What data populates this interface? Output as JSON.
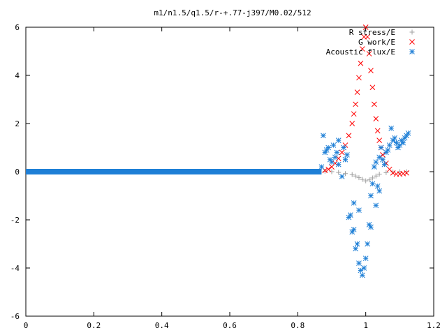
{
  "chart_data": {
    "type": "scatter",
    "title": "m1/n1.5/q1.5/r-+.77-j397/M0.02/512",
    "xlim": [
      0,
      1.2
    ],
    "ylim": [
      -6,
      6
    ],
    "xticks": [
      "0",
      "0.2",
      "0.4",
      "0.6",
      "0.8",
      "1",
      "1.2"
    ],
    "yticks": [
      "-6",
      "-4",
      "-2",
      "0",
      "2",
      "4",
      "6"
    ],
    "legend_position": "top-right",
    "grid": false,
    "series": [
      {
        "name": "R stress/E",
        "marker": "plus",
        "color": "#a0a0a0",
        "x": [
          0.88,
          0.9,
          0.92,
          0.94,
          0.96,
          0.97,
          0.98,
          0.99,
          1.0,
          1.01,
          1.02,
          1.03,
          1.04,
          1.06,
          1.08,
          1.1,
          1.12
        ],
        "y": [
          0.02,
          0.0,
          -0.03,
          -0.08,
          -0.12,
          -0.18,
          -0.25,
          -0.32,
          -0.38,
          -0.34,
          -0.26,
          -0.18,
          -0.1,
          -0.04,
          -0.01,
          0.0,
          0.0
        ]
      },
      {
        "name": "G work/E",
        "marker": "cross",
        "color": "#ff0000",
        "x": [
          0.88,
          0.89,
          0.9,
          0.91,
          0.92,
          0.93,
          0.94,
          0.95,
          0.96,
          0.965,
          0.97,
          0.975,
          0.98,
          0.985,
          0.99,
          0.995,
          1.0,
          1.005,
          1.01,
          1.015,
          1.02,
          1.025,
          1.03,
          1.035,
          1.04,
          1.045,
          1.05,
          1.06,
          1.07,
          1.08,
          1.09,
          1.1,
          1.11,
          1.12
        ],
        "y": [
          0.05,
          0.1,
          0.2,
          0.35,
          0.55,
          0.8,
          1.1,
          1.5,
          2.0,
          2.4,
          2.8,
          3.3,
          3.9,
          4.5,
          5.1,
          5.6,
          6.0,
          5.6,
          4.9,
          4.2,
          3.5,
          2.8,
          2.2,
          1.7,
          1.3,
          1.0,
          0.7,
          0.35,
          0.1,
          -0.05,
          -0.1,
          -0.1,
          -0.08,
          -0.05
        ]
      },
      {
        "name": "Acoustic flux/E",
        "marker": "star",
        "color": "#1e7fd6",
        "x": [
          0.87,
          0.875,
          0.88,
          0.885,
          0.89,
          0.895,
          0.9,
          0.905,
          0.91,
          0.915,
          0.92,
          0.93,
          0.94,
          0.95,
          0.955,
          0.96,
          0.965,
          0.97,
          0.975,
          0.98,
          0.985,
          0.99,
          0.995,
          1.0,
          1.005,
          1.01,
          1.015,
          1.02,
          1.025,
          1.03,
          1.035,
          1.04,
          1.045,
          1.05,
          1.06,
          1.07,
          1.08,
          1.09,
          1.1,
          1.11,
          1.12,
          1.125,
          0.92,
          0.935,
          0.945,
          0.965,
          0.98,
          1.015,
          1.03,
          1.04,
          1.055,
          1.065,
          1.075,
          1.085,
          1.095,
          1.105,
          1.115
        ],
        "y": [
          0.2,
          1.5,
          0.8,
          0.9,
          1.0,
          0.5,
          0.4,
          1.1,
          0.6,
          0.8,
          0.3,
          -0.2,
          0.5,
          -1.9,
          -1.8,
          -2.5,
          -2.4,
          -3.2,
          -3.0,
          -3.8,
          -4.1,
          -4.3,
          -4.0,
          -3.6,
          -3.0,
          -2.2,
          -2.3,
          -0.5,
          0.2,
          0.4,
          -0.6,
          -0.8,
          1.0,
          0.5,
          0.8,
          1.1,
          1.3,
          1.2,
          1.1,
          1.2,
          1.5,
          1.6,
          1.3,
          1.0,
          0.7,
          -1.3,
          -1.6,
          -1.0,
          -1.4,
          0.6,
          0.3,
          0.9,
          1.8,
          1.4,
          1.0,
          1.3,
          1.4
        ],
        "flat_x_range": [
          0.0,
          0.87
        ],
        "flat_y": 0.0
      }
    ]
  }
}
